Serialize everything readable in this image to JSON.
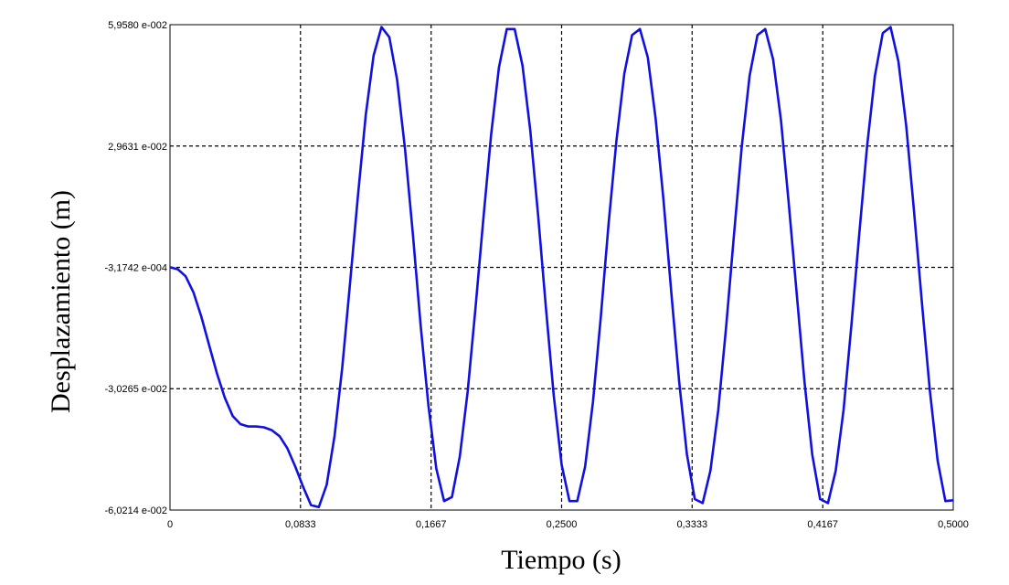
{
  "chart_data": {
    "type": "line",
    "title": "",
    "xlabel": "Tiempo (s)",
    "ylabel": "Desplazamiento (m)",
    "xlim": [
      0,
      0.5
    ],
    "ylim": [
      -0.060214,
      0.05958
    ],
    "x_ticks": [
      0,
      0.0833,
      0.1667,
      0.25,
      0.3333,
      0.4167,
      0.5
    ],
    "x_tick_labels": [
      "0",
      "0,0833",
      "0,1667",
      "0,2500",
      "0,3333",
      "0,4167",
      "0,5000"
    ],
    "y_ticks": [
      0.05958,
      0.029631,
      -0.00031742,
      -0.030265,
      -0.060214
    ],
    "y_tick_labels": [
      "5,9580 e-002",
      "2,9631 e-002",
      "-3,1742 e-004",
      "-3,0265 e-002",
      "-6,0214 e-002"
    ],
    "grid": true,
    "line_color": "#1010e0",
    "series": [
      {
        "x": [
          0,
          0.005,
          0.01,
          0.015,
          0.02,
          0.025,
          0.03,
          0.035,
          0.04,
          0.045,
          0.05,
          0.055,
          0.06,
          0.065,
          0.07,
          0.075,
          0.08,
          0.085,
          0.09,
          0.095,
          0.1,
          0.105,
          0.11,
          0.115,
          0.12,
          0.125,
          0.13,
          0.135,
          0.14,
          0.145,
          0.15,
          0.155,
          0.16,
          0.165,
          0.17,
          0.175,
          0.18,
          0.185,
          0.19,
          0.195,
          0.2,
          0.205,
          0.21,
          0.215,
          0.22,
          0.225,
          0.23,
          0.235,
          0.24,
          0.245,
          0.25,
          0.255,
          0.26,
          0.265,
          0.27,
          0.275,
          0.28,
          0.285,
          0.29,
          0.295,
          0.3,
          0.305,
          0.31,
          0.315,
          0.32,
          0.325,
          0.33,
          0.335,
          0.34,
          0.345,
          0.35,
          0.355,
          0.36,
          0.365,
          0.37,
          0.375,
          0.38,
          0.385,
          0.39,
          0.395,
          0.4,
          0.405,
          0.41,
          0.415,
          0.42,
          0.425,
          0.43,
          0.435,
          0.44,
          0.445,
          0.45,
          0.455,
          0.46,
          0.465,
          0.47,
          0.475,
          0.48,
          0.485,
          0.49,
          0.495,
          0.5
        ],
        "y": [
          -0.0003,
          -0.0008,
          -0.0025,
          -0.0065,
          -0.0125,
          -0.0195,
          -0.0265,
          -0.0325,
          -0.037,
          -0.039,
          -0.0396,
          -0.0396,
          -0.0398,
          -0.0405,
          -0.042,
          -0.045,
          -0.0495,
          -0.0545,
          -0.059,
          -0.0595,
          -0.054,
          -0.042,
          -0.025,
          -0.004,
          0.0175,
          0.0375,
          0.052,
          0.059,
          0.0565,
          0.046,
          0.029,
          0.008,
          -0.0145,
          -0.0345,
          -0.05,
          -0.058,
          -0.057,
          -0.047,
          -0.031,
          -0.0105,
          0.0115,
          0.0325,
          0.049,
          0.0585,
          0.0585,
          0.0495,
          0.0335,
          0.0125,
          -0.0105,
          -0.032,
          -0.049,
          -0.058,
          -0.058,
          -0.0495,
          -0.0335,
          -0.0125,
          0.0105,
          0.031,
          0.0475,
          0.057,
          0.0585,
          0.0515,
          0.0365,
          0.0165,
          -0.0065,
          -0.0285,
          -0.0465,
          -0.0575,
          -0.0585,
          -0.0505,
          -0.0355,
          -0.015,
          0.0075,
          0.0295,
          0.047,
          0.057,
          0.0585,
          0.051,
          0.036,
          0.0155,
          -0.0065,
          -0.0285,
          -0.0465,
          -0.0575,
          -0.0585,
          -0.0505,
          -0.0355,
          -0.0145,
          0.008,
          0.0295,
          0.047,
          0.0575,
          0.059,
          0.0505,
          0.0345,
          0.0135,
          -0.009,
          -0.0305,
          -0.048,
          -0.058,
          -0.0578
        ]
      }
    ]
  }
}
